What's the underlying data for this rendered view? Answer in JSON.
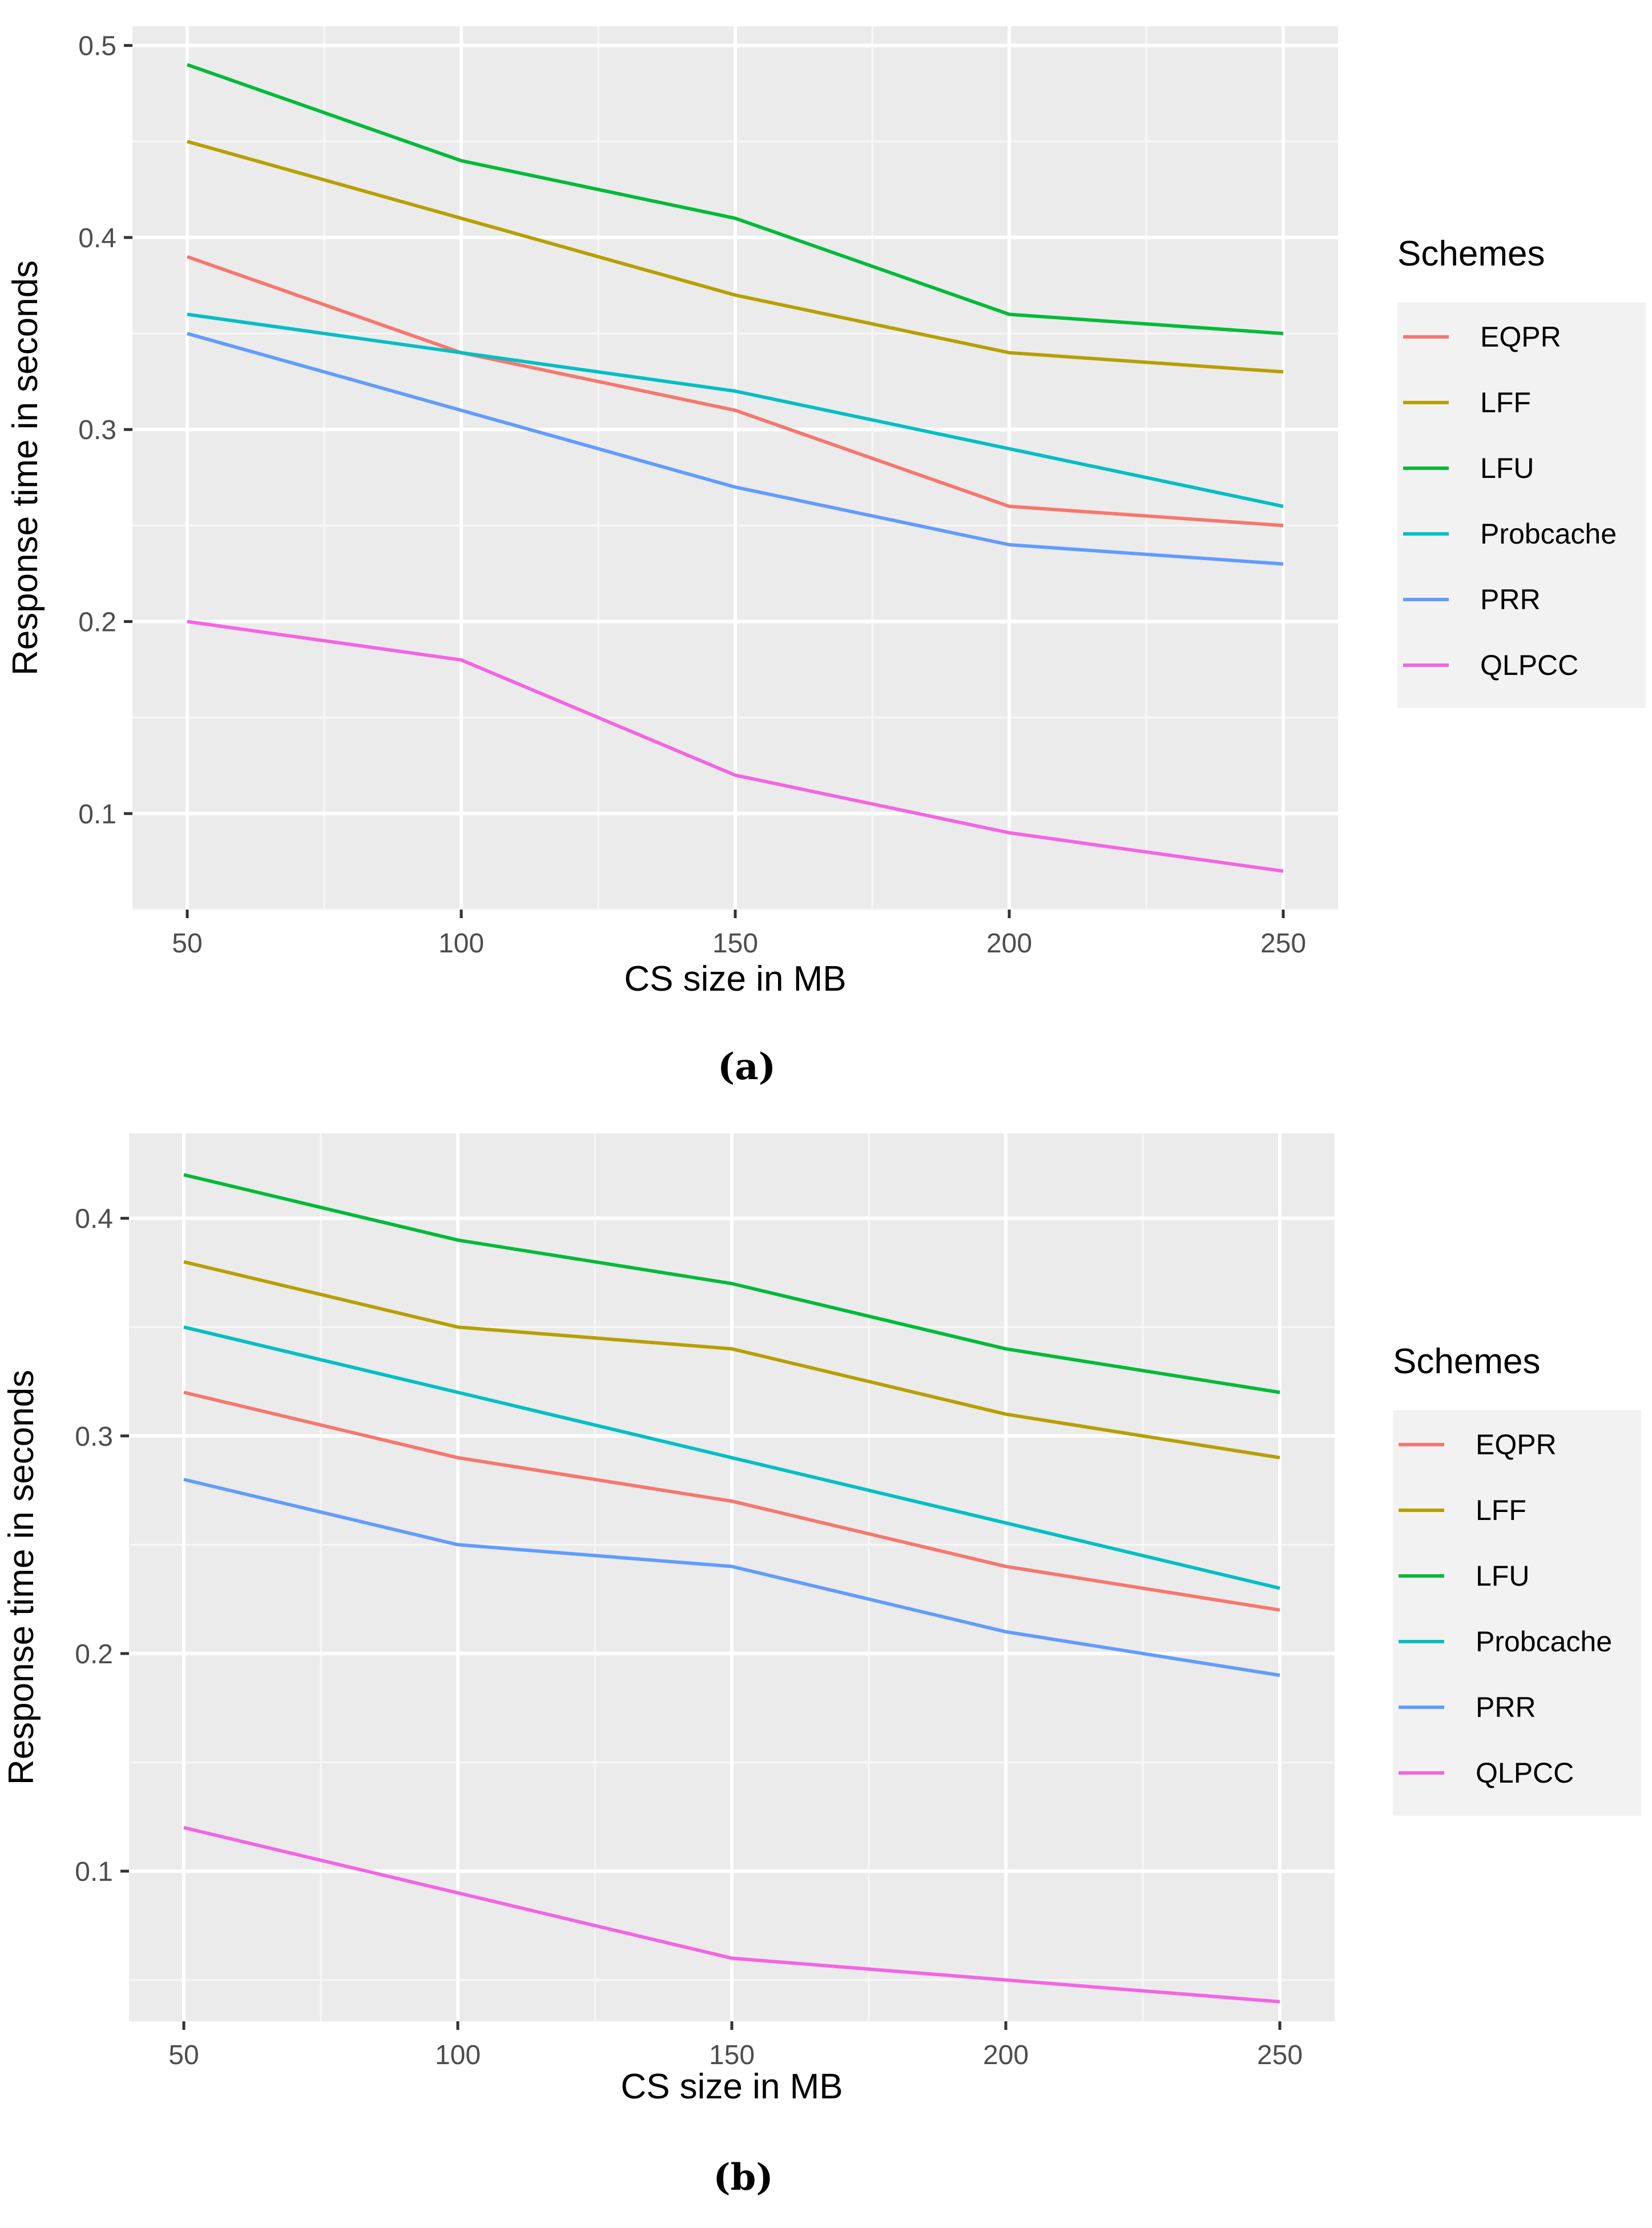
{
  "chart_data": [
    {
      "type": "line",
      "caption": "(a)",
      "xlabel": "CS size in MB",
      "ylabel": "Response time in seconds",
      "x": [
        50,
        100,
        150,
        200,
        250
      ],
      "x_ticks": [
        "50",
        "100",
        "150",
        "200",
        "250"
      ],
      "y_ticks": [
        "0.1",
        "0.2",
        "0.3",
        "0.4",
        "0.5"
      ],
      "xlim": [
        40,
        260
      ],
      "ylim": [
        0.05,
        0.51
      ],
      "legend_title": "Schemes",
      "legend_position": "right",
      "series": [
        {
          "name": "EQPR",
          "color": "#F8766D",
          "values": [
            0.39,
            0.34,
            0.31,
            0.26,
            0.25
          ]
        },
        {
          "name": "LFF",
          "color": "#B79F00",
          "values": [
            0.45,
            0.41,
            0.37,
            0.34,
            0.33
          ]
        },
        {
          "name": "LFU",
          "color": "#00BA38",
          "values": [
            0.49,
            0.44,
            0.41,
            0.36,
            0.35
          ]
        },
        {
          "name": "Probcache",
          "color": "#00BFC4",
          "values": [
            0.36,
            0.34,
            0.32,
            0.29,
            0.26
          ]
        },
        {
          "name": "PRR",
          "color": "#619CFF",
          "values": [
            0.35,
            0.31,
            0.27,
            0.24,
            0.23
          ]
        },
        {
          "name": "QLPCC",
          "color": "#F564E3",
          "values": [
            0.2,
            0.18,
            0.12,
            0.09,
            0.07
          ]
        }
      ]
    },
    {
      "type": "line",
      "caption": "(b)",
      "xlabel": "CS size in MB",
      "ylabel": "Response time in seconds",
      "x": [
        50,
        100,
        150,
        200,
        250
      ],
      "x_ticks": [
        "50",
        "100",
        "150",
        "200",
        "250"
      ],
      "y_ticks": [
        "0.1",
        "0.2",
        "0.3",
        "0.4"
      ],
      "xlim": [
        40,
        260
      ],
      "ylim": [
        0.031,
        0.439
      ],
      "legend_title": "Schemes",
      "legend_position": "right",
      "series": [
        {
          "name": "EQPR",
          "color": "#F8766D",
          "values": [
            0.32,
            0.29,
            0.27,
            0.24,
            0.22
          ]
        },
        {
          "name": "LFF",
          "color": "#B79F00",
          "values": [
            0.38,
            0.35,
            0.34,
            0.31,
            0.29
          ]
        },
        {
          "name": "LFU",
          "color": "#00BA38",
          "values": [
            0.42,
            0.39,
            0.37,
            0.34,
            0.32
          ]
        },
        {
          "name": "Probcache",
          "color": "#00BFC4",
          "values": [
            0.35,
            0.32,
            0.29,
            0.26,
            0.23
          ]
        },
        {
          "name": "PRR",
          "color": "#619CFF",
          "values": [
            0.28,
            0.25,
            0.24,
            0.21,
            0.19
          ]
        },
        {
          "name": "QLPCC",
          "color": "#F564E3",
          "values": [
            0.12,
            0.09,
            0.06,
            0.05,
            0.04
          ]
        }
      ]
    }
  ]
}
